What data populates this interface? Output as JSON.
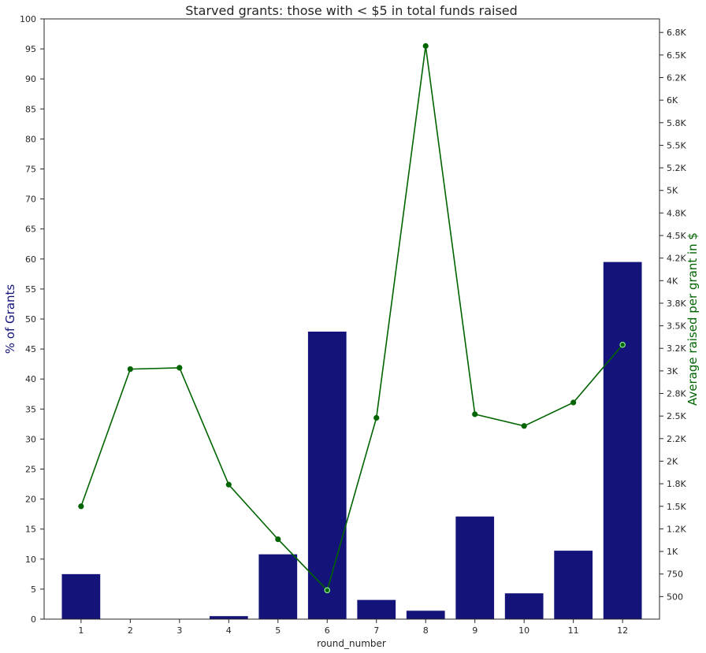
{
  "chart_data": {
    "type": "bar",
    "title": "Starved grants: those with < $5 in total funds raised",
    "xlabel": "round_number",
    "ylabel": "% of Grants",
    "ylabel_right": "Average raised per grant in $",
    "categories": [
      "1",
      "2",
      "3",
      "4",
      "5",
      "6",
      "7",
      "8",
      "9",
      "10",
      "11",
      "12"
    ],
    "ylim": [
      0,
      100
    ],
    "yticks": [
      0,
      5,
      10,
      15,
      20,
      25,
      30,
      35,
      40,
      45,
      50,
      55,
      60,
      65,
      70,
      75,
      80,
      85,
      90,
      95,
      100
    ],
    "ylim_right": [
      250,
      6900
    ],
    "yticks_right": [
      {
        "value": 500,
        "label": "500"
      },
      {
        "value": 750,
        "label": "750"
      },
      {
        "value": 1000,
        "label": "1K"
      },
      {
        "value": 1250,
        "label": "1.2K"
      },
      {
        "value": 1500,
        "label": "1.5K"
      },
      {
        "value": 1750,
        "label": "1.8K"
      },
      {
        "value": 2000,
        "label": "2K"
      },
      {
        "value": 2250,
        "label": "2.2K"
      },
      {
        "value": 2500,
        "label": "2.5K"
      },
      {
        "value": 2750,
        "label": "2.8K"
      },
      {
        "value": 3000,
        "label": "3K"
      },
      {
        "value": 3250,
        "label": "3.2K"
      },
      {
        "value": 3500,
        "label": "3.5K"
      },
      {
        "value": 3750,
        "label": "3.8K"
      },
      {
        "value": 4000,
        "label": "4K"
      },
      {
        "value": 4250,
        "label": "4.2K"
      },
      {
        "value": 4500,
        "label": "4.5K"
      },
      {
        "value": 4750,
        "label": "4.8K"
      },
      {
        "value": 5000,
        "label": "5K"
      },
      {
        "value": 5250,
        "label": "5.2K"
      },
      {
        "value": 5500,
        "label": "5.5K"
      },
      {
        "value": 5750,
        "label": "5.8K"
      },
      {
        "value": 6000,
        "label": "6K"
      },
      {
        "value": 6250,
        "label": "6.2K"
      },
      {
        "value": 6500,
        "label": "6.5K"
      },
      {
        "value": 6750,
        "label": "6.8K"
      }
    ],
    "series": [
      {
        "kind": "bar",
        "axis": "left",
        "color": "#13137a",
        "values": [
          7.5,
          0,
          0,
          0.5,
          10.8,
          47.9,
          3.2,
          1.4,
          17.1,
          4.3,
          11.4,
          59.5
        ]
      },
      {
        "kind": "line",
        "axis": "right",
        "color": "#006400",
        "marker_color": "#006400",
        "highlight_marker_color": "#90ee90",
        "highlight_indices": [
          5,
          11
        ],
        "values": [
          1500,
          3020,
          3035,
          1740,
          1135,
          570,
          2480,
          6600,
          2520,
          2390,
          2650,
          3290
        ]
      }
    ],
    "grid": false,
    "legend": "none"
  }
}
